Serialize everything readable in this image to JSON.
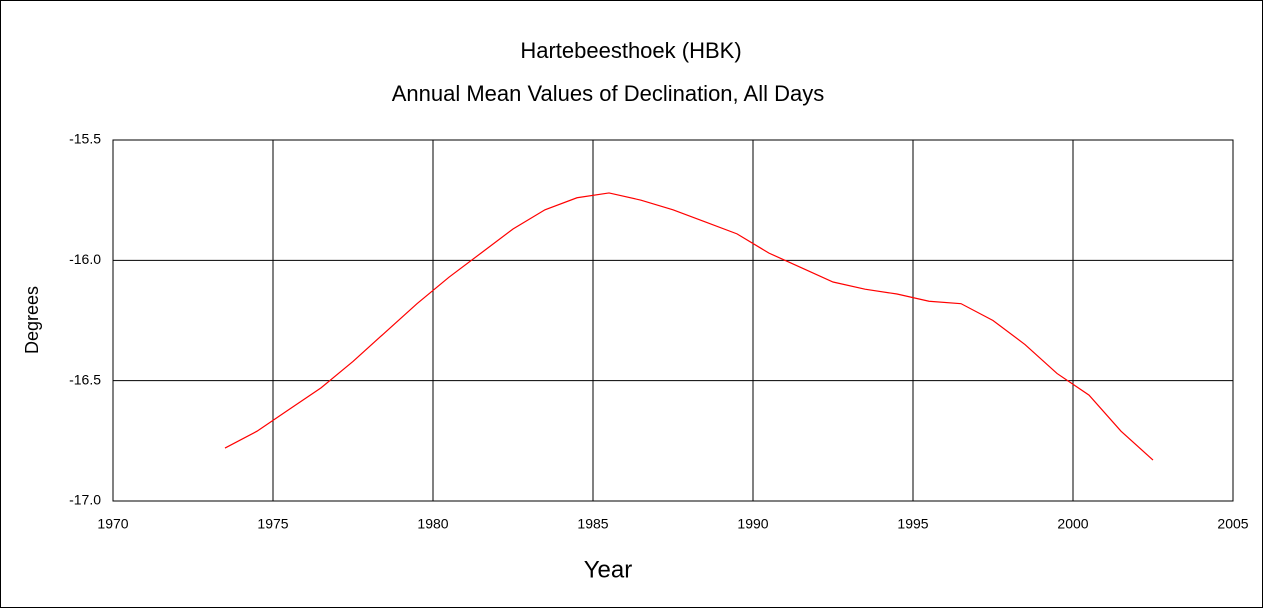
{
  "chart_data": {
    "type": "line",
    "title": "Hartebeesthoek (HBK)",
    "subtitle": "Annual Mean Values of Declination, All Days",
    "xlabel": "Year",
    "ylabel": "Degrees",
    "x": [
      1973.5,
      1974.5,
      1975.5,
      1976.5,
      1977.5,
      1978.5,
      1979.5,
      1980.5,
      1981.5,
      1982.5,
      1983.5,
      1984.5,
      1985.5,
      1986.5,
      1987.5,
      1988.5,
      1989.5,
      1990.5,
      1991.5,
      1992.5,
      1993.5,
      1994.5,
      1995.5,
      1996.5,
      1997.5,
      1998.5,
      1999.5,
      2000.5,
      2001.5,
      2002.5
    ],
    "series": [
      {
        "name": "Declination",
        "color": "#ff0000",
        "values": [
          -16.78,
          -16.71,
          -16.62,
          -16.53,
          -16.42,
          -16.3,
          -16.18,
          -16.07,
          -15.97,
          -15.87,
          -15.79,
          -15.74,
          -15.72,
          -15.75,
          -15.79,
          -15.84,
          -15.89,
          -15.97,
          -16.03,
          -16.09,
          -16.12,
          -16.14,
          -16.17,
          -16.18,
          -16.25,
          -16.35,
          -16.47,
          -16.56,
          -16.71,
          -16.83
        ]
      }
    ],
    "xlim": [
      1970,
      2005
    ],
    "xticks": [
      1970,
      1975,
      1980,
      1985,
      1990,
      1995,
      2000,
      2005
    ],
    "ylim": [
      -17,
      -15.5
    ],
    "yticks": [
      {
        "value": -17,
        "label": "-17.0"
      },
      -16.5,
      {
        "value": -16,
        "label": "-16.0"
      },
      -15.5
    ],
    "grid": true
  }
}
